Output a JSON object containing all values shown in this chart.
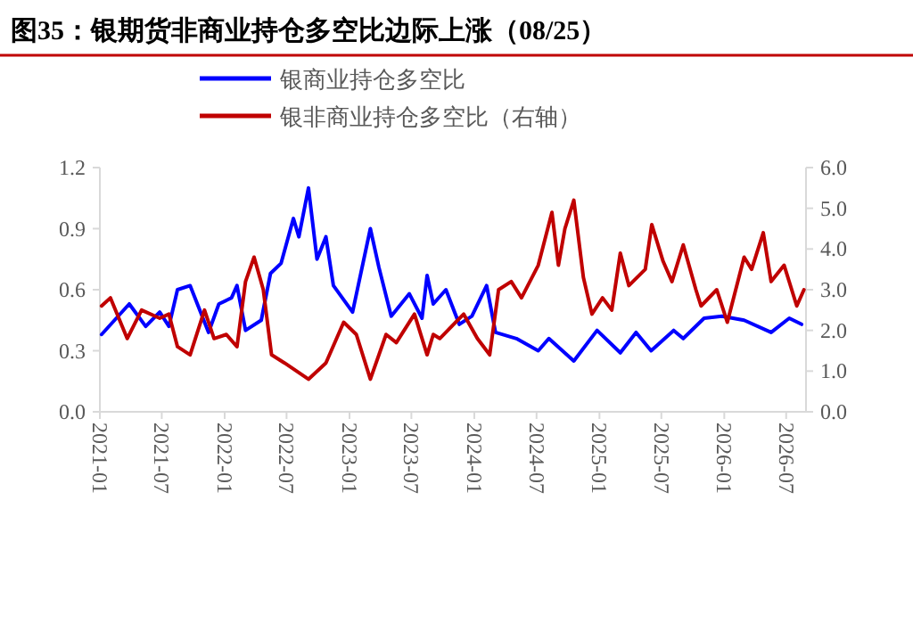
{
  "chart_data": {
    "type": "line",
    "title": "图35：银期货非商业持仓多空比边际上涨（08/25）",
    "legend": "top",
    "grid": false,
    "marker": "none",
    "line_style": "solid",
    "xlim": [
      "2021-01",
      "2026-08-28"
    ],
    "xticks": [
      "2021-01",
      "2021-07",
      "2022-01",
      "2022-07",
      "2023-01",
      "2023-07",
      "2024-01",
      "2024-07",
      "2025-01",
      "2025-07",
      "2026-01",
      "2026-07"
    ],
    "ylim": [
      0,
      1.2
    ],
    "yticks": [
      {
        "value": 0,
        "label": "0.0"
      },
      0.3,
      0.6,
      0.9,
      1.2
    ],
    "y2lim": [
      0,
      6
    ],
    "y2ticks": [
      {
        "value": 0,
        "label": "0.0"
      },
      {
        "value": 1,
        "label": "1.0"
      },
      {
        "value": 2,
        "label": "2.0"
      },
      {
        "value": 3,
        "label": "3.0"
      },
      {
        "value": 4,
        "label": "4.0"
      },
      {
        "value": 5,
        "label": "5.0"
      },
      {
        "value": 6,
        "label": "6.0"
      }
    ],
    "series": [
      {
        "name": "银商业持仓多空比",
        "color": "#0000ff",
        "x": [
          "2021-01-06",
          "2021-03-28",
          "2021-05-15",
          "2021-06-25",
          "2021-07-22",
          "2021-08-16",
          "2021-09-22",
          "2021-11-15",
          "2021-12-15",
          "2022-01-21",
          "2022-02-06",
          "2022-03-03",
          "2022-04-18",
          "2022-05-15",
          "2022-06-15",
          "2022-07-21",
          "2022-08-06",
          "2022-09-03",
          "2022-09-28",
          "2022-10-24",
          "2022-11-15",
          "2023-01-10",
          "2023-03-03",
          "2023-03-28",
          "2023-05-03",
          "2023-06-25",
          "2023-08-01",
          "2023-08-16",
          "2023-09-03",
          "2023-10-10",
          "2023-11-18",
          "2023-12-25",
          "2024-02-06",
          "2024-03-03",
          "2024-05-03",
          "2024-07-06",
          "2024-08-06",
          "2024-10-18",
          "2024-12-25",
          "2025-03-03",
          "2025-04-18",
          "2025-06-01",
          "2025-08-06",
          "2025-09-03",
          "2025-11-03",
          "2025-12-25",
          "2026-02-28",
          "2026-05-18",
          "2026-07-10",
          "2026-08-15"
        ],
        "values": [
          0.38,
          0.53,
          0.42,
          0.49,
          0.42,
          0.6,
          0.62,
          0.39,
          0.53,
          0.56,
          0.62,
          0.4,
          0.45,
          0.68,
          0.73,
          0.95,
          0.86,
          1.1,
          0.75,
          0.86,
          0.62,
          0.49,
          0.9,
          0.71,
          0.47,
          0.58,
          0.46,
          0.67,
          0.53,
          0.6,
          0.43,
          0.47,
          0.62,
          0.39,
          0.36,
          0.3,
          0.36,
          0.25,
          0.4,
          0.29,
          0.39,
          0.3,
          0.4,
          0.36,
          0.46,
          0.47,
          0.45,
          0.39,
          0.46,
          0.43
        ]
      },
      {
        "name": "银非商业持仓多空比（右轴）",
        "color": "#c00000",
        "axis": "y2",
        "x": [
          "2021-01-06",
          "2021-02-01",
          "2021-03-22",
          "2021-05-03",
          "2021-06-25",
          "2021-07-22",
          "2021-08-16",
          "2021-09-22",
          "2021-11-03",
          "2021-12-01",
          "2022-01-06",
          "2022-02-06",
          "2022-03-03",
          "2022-03-28",
          "2022-04-24",
          "2022-05-18",
          "2022-06-25",
          "2022-09-03",
          "2022-10-24",
          "2022-12-15",
          "2023-01-21",
          "2023-03-03",
          "2023-04-18",
          "2023-05-18",
          "2023-07-10",
          "2023-08-16",
          "2023-09-03",
          "2023-09-22",
          "2023-12-01",
          "2024-01-10",
          "2024-02-15",
          "2024-03-12",
          "2024-04-18",
          "2024-05-18",
          "2024-07-06",
          "2024-08-15",
          "2024-09-03",
          "2024-09-22",
          "2024-10-18",
          "2024-11-15",
          "2024-12-10",
          "2025-01-10",
          "2025-02-06",
          "2025-03-03",
          "2025-03-28",
          "2025-05-15",
          "2025-06-03",
          "2025-07-06",
          "2025-08-01",
          "2025-09-03",
          "2025-10-10",
          "2025-10-25",
          "2025-12-10",
          "2026-01-10",
          "2026-02-28",
          "2026-03-22",
          "2026-04-25",
          "2026-05-18",
          "2026-06-25",
          "2026-08-01",
          "2026-08-22"
        ],
        "values": [
          2.6,
          2.8,
          1.8,
          2.5,
          2.3,
          2.4,
          1.6,
          1.4,
          2.5,
          1.8,
          1.9,
          1.6,
          3.2,
          3.8,
          3.0,
          1.4,
          1.2,
          0.8,
          1.2,
          2.2,
          1.9,
          0.8,
          1.9,
          1.7,
          2.4,
          1.4,
          1.9,
          1.8,
          2.4,
          1.8,
          1.4,
          3.0,
          3.2,
          2.8,
          3.6,
          4.9,
          3.6,
          4.5,
          5.2,
          3.3,
          2.4,
          2.8,
          2.5,
          3.9,
          3.1,
          3.5,
          4.6,
          3.7,
          3.2,
          4.1,
          3.0,
          2.6,
          3.0,
          2.2,
          3.8,
          3.5,
          4.4,
          3.2,
          3.6,
          2.6,
          3.0
        ]
      }
    ]
  }
}
